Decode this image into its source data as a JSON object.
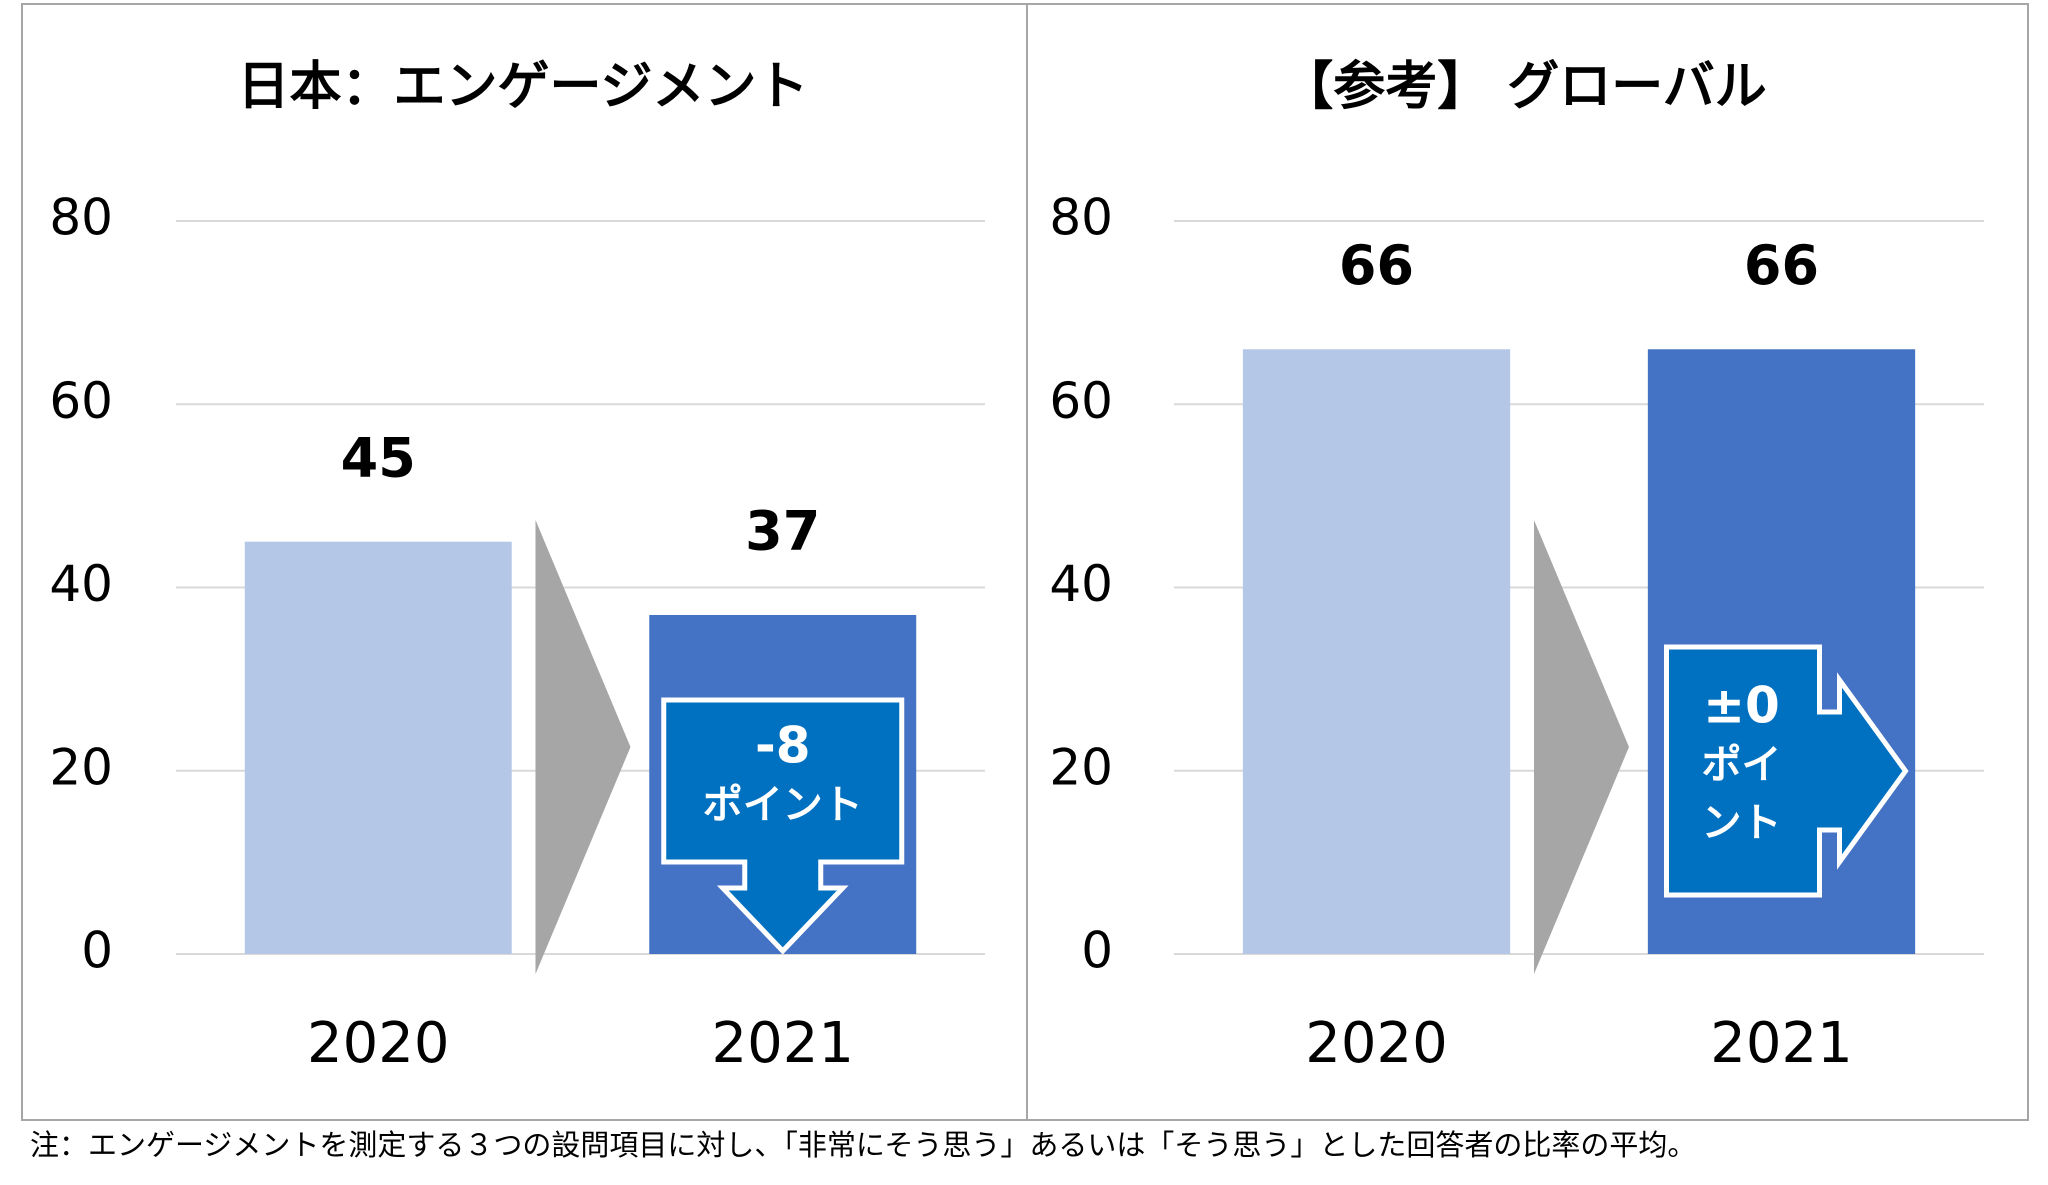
{
  "chart_data": [
    {
      "type": "bar",
      "title": "日本：エンゲージメント",
      "categories": [
        "2020",
        "2021"
      ],
      "values": [
        45,
        37
      ],
      "colors": [
        "#b4c7e7",
        "#4472c4"
      ],
      "ylim": [
        0,
        80
      ],
      "yticks": [
        0,
        20,
        40,
        60,
        80
      ],
      "grid": true,
      "annotation": [
        "-8",
        "ポイント"
      ]
    },
    {
      "type": "bar",
      "title": "【参考】 グローバル",
      "categories": [
        "2020",
        "2021"
      ],
      "values": [
        66,
        66
      ],
      "colors": [
        "#b4c7e7",
        "#4472c4"
      ],
      "ylim": [
        0,
        80
      ],
      "yticks": [
        0,
        20,
        40,
        60,
        80
      ],
      "grid": true,
      "annotation": [
        "±0",
        "ポイ",
        "ント"
      ]
    }
  ],
  "note": "注：エンゲージメントを測定する３つの設問項目に対し、「非常にそう思う」あるいは「そう思う」とした回答者の比率の平均。"
}
